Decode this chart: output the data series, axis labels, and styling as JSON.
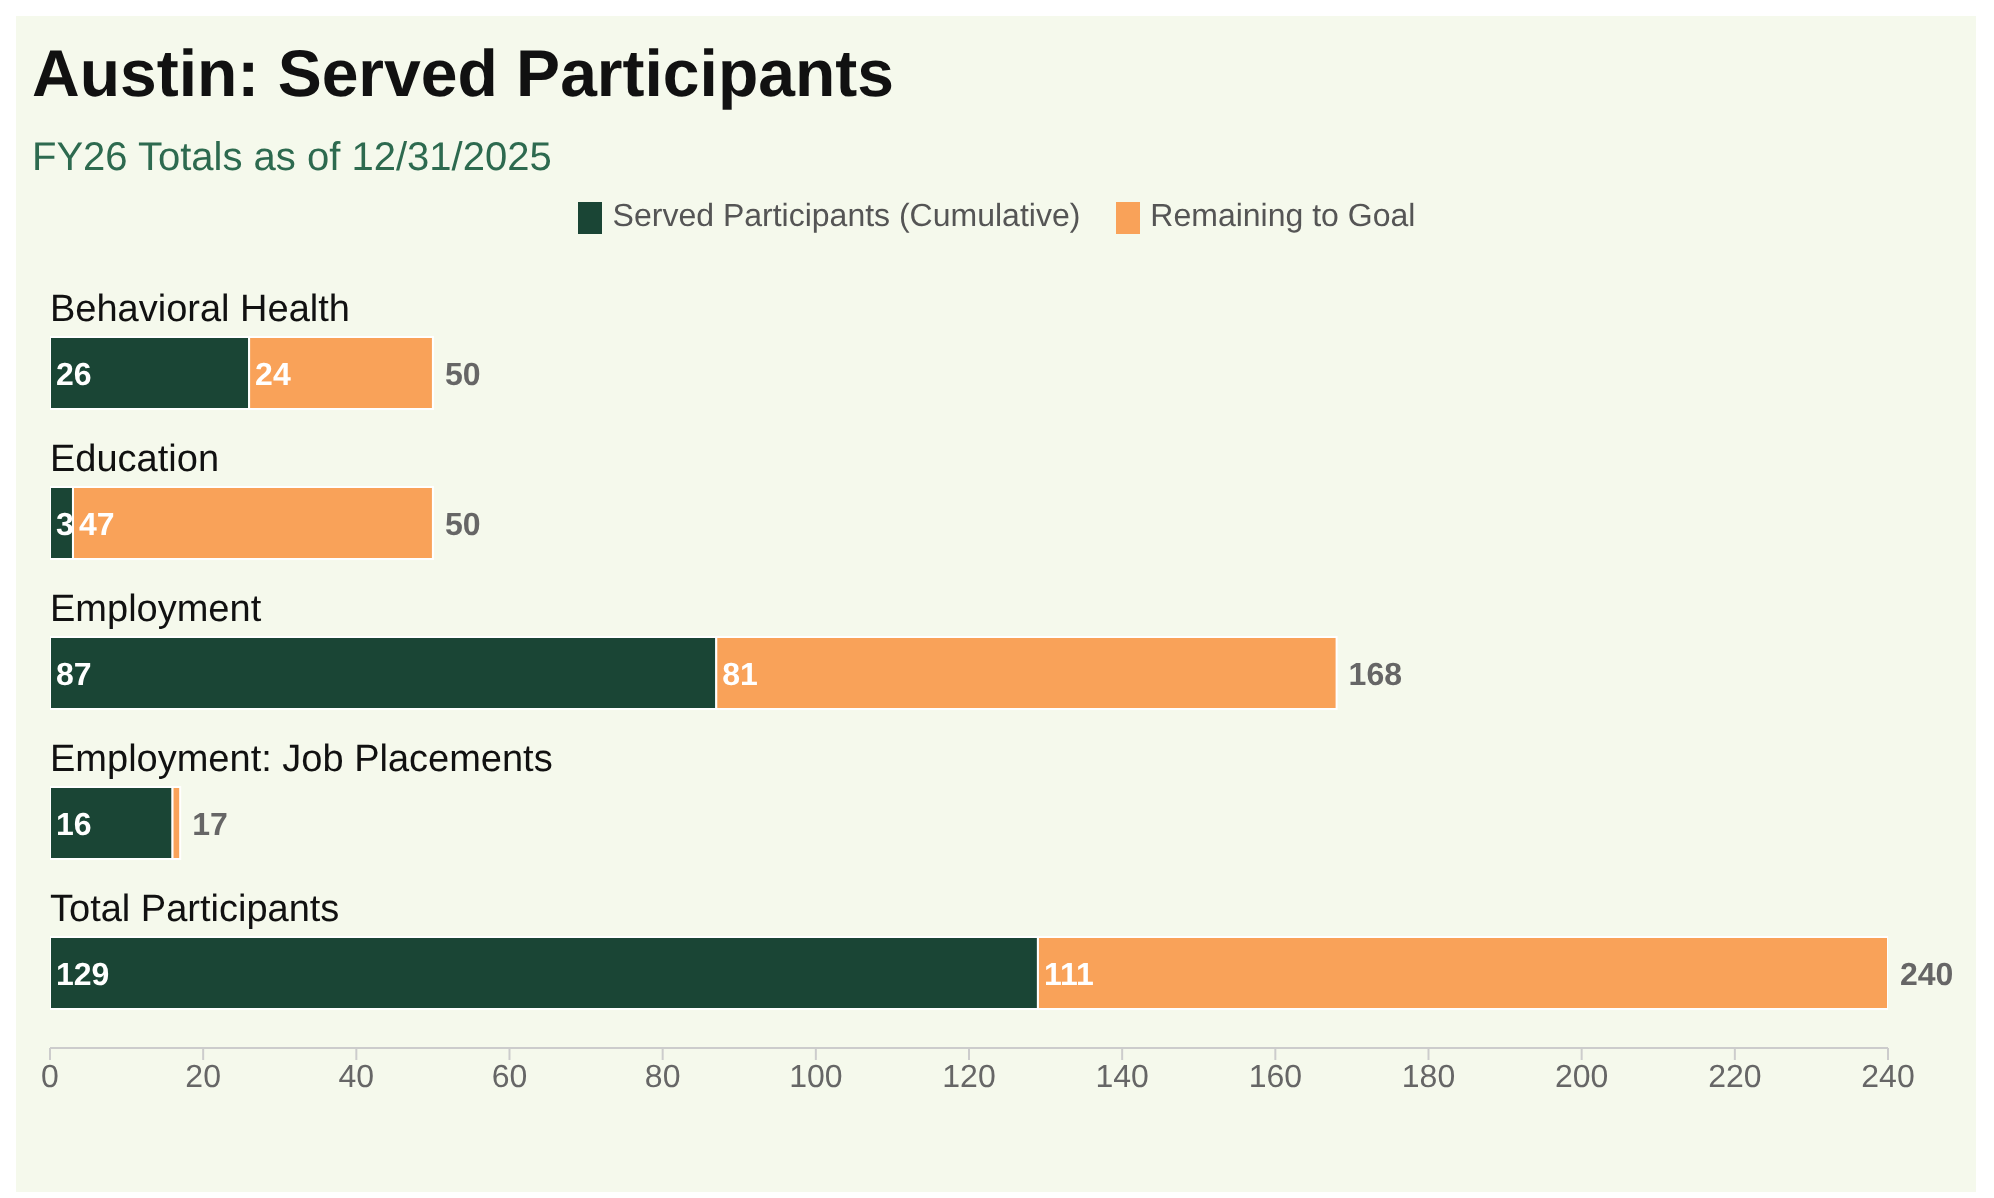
{
  "chart_data": {
    "type": "bar",
    "title": "Austin: Served Participants",
    "subtitle": "FY26 Totals as of 12/31/2025",
    "orientation": "horizontal",
    "stacked": true,
    "legend": "top",
    "categories": [
      "Behavioral Health",
      "Education",
      "Employment",
      "Employment: Job Placements",
      "Total Participants"
    ],
    "series": [
      {
        "name": "Served Participants (Cumulative)",
        "color": "#1a4535",
        "values": [
          26,
          3,
          87,
          16,
          129
        ],
        "value_labels": [
          "26",
          "3",
          "87",
          "16",
          "129"
        ]
      },
      {
        "name": "Remaining to Goal",
        "color": "#f9a259",
        "values": [
          24,
          47,
          81,
          1,
          111
        ],
        "value_labels": [
          "24",
          "47",
          "81",
          null,
          "111"
        ]
      }
    ],
    "totals": [
      "50",
      "50",
      "168",
      "17",
      "240"
    ],
    "xlim": [
      0,
      240
    ],
    "xticks": [
      0,
      20,
      40,
      60,
      80,
      100,
      120,
      140,
      160,
      180,
      200,
      220,
      240
    ],
    "grid": false
  }
}
